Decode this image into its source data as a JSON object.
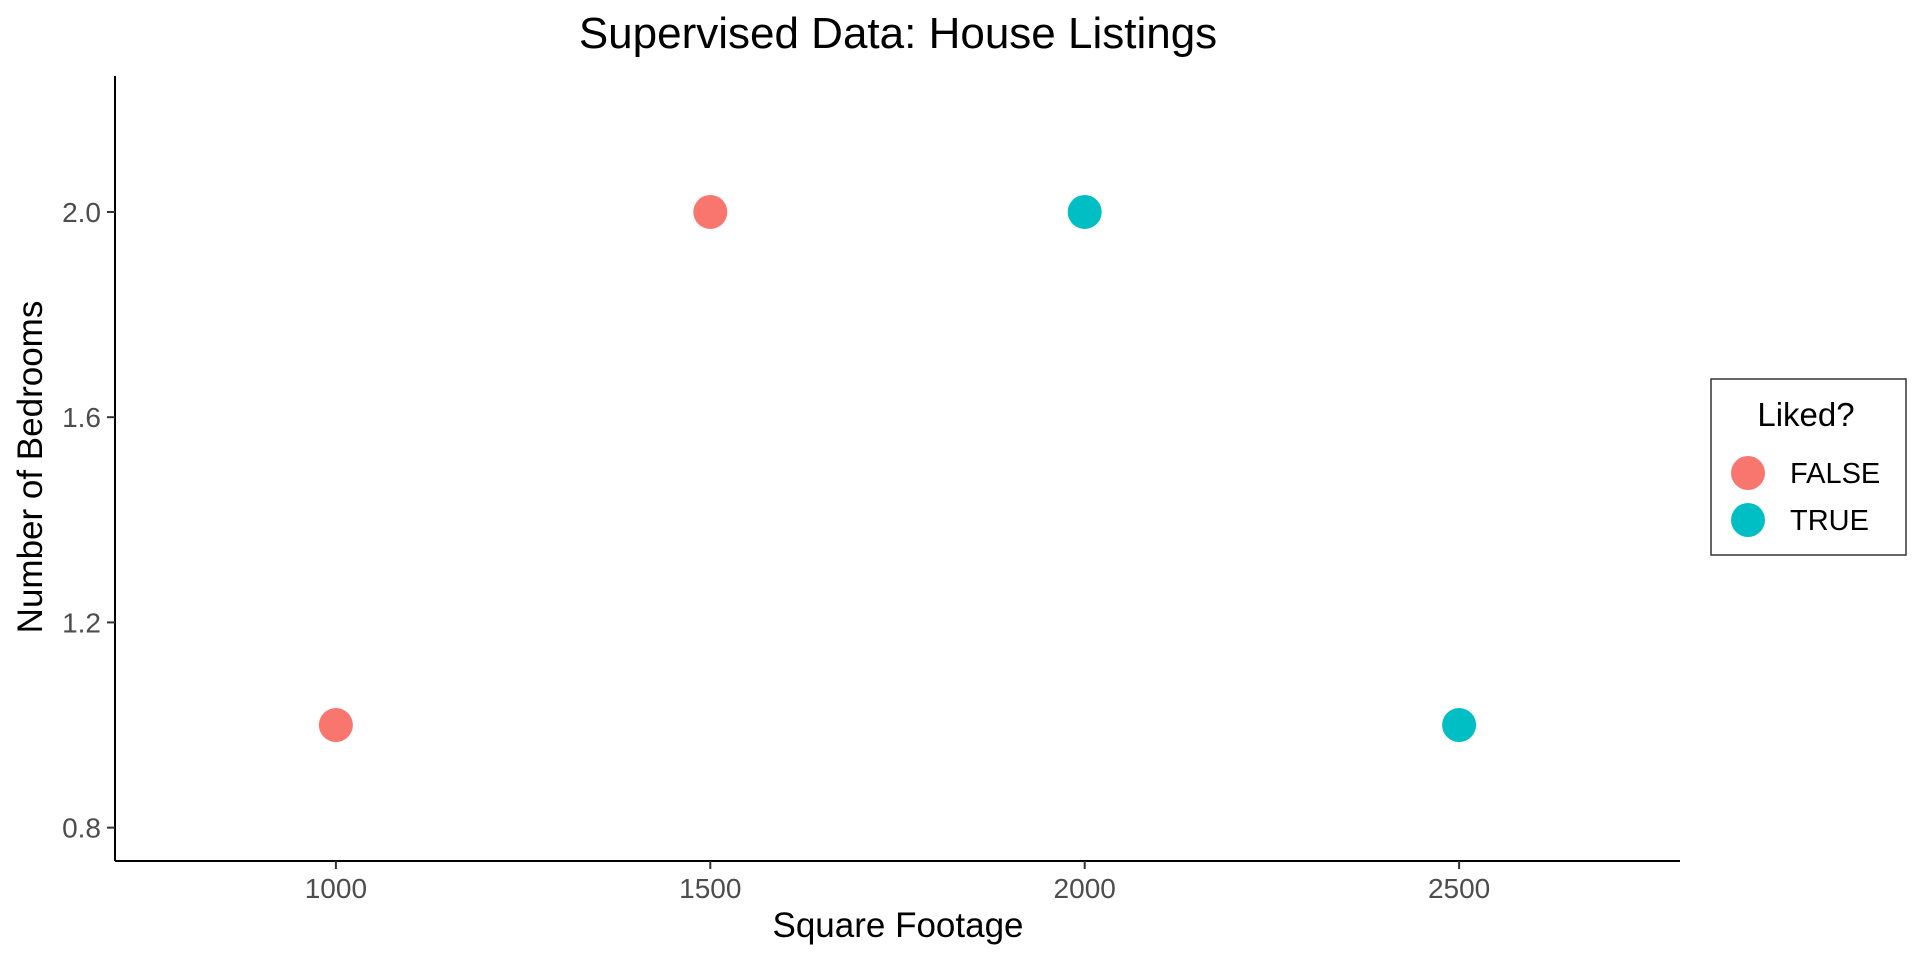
{
  "chart_data": {
    "type": "scatter",
    "title": "Supervised Data: House Listings",
    "xlabel": "Square Footage",
    "ylabel": "Number of Bedrooms",
    "xlim": [
      705,
      2795
    ],
    "ylim": [
      0.735,
      2.265
    ],
    "x_ticks": [
      1000,
      1500,
      2000,
      2500
    ],
    "x_tick_labels": [
      "1000",
      "1500",
      "2000",
      "2500"
    ],
    "y_ticks": [
      0.8,
      1.2,
      1.6,
      2.0
    ],
    "y_tick_labels": [
      "0.8",
      "1.2",
      "1.6",
      "2.0"
    ],
    "grid": false,
    "legend": {
      "title": "Liked?",
      "placement": "right",
      "entries": [
        {
          "label": "FALSE",
          "color": "#F8766D"
        },
        {
          "label": "TRUE",
          "color": "#00BFC4"
        }
      ]
    },
    "series": [
      {
        "name": "FALSE",
        "color": "#F8766D",
        "points": [
          {
            "x": 1000,
            "y": 1
          },
          {
            "x": 1500,
            "y": 2
          }
        ]
      },
      {
        "name": "TRUE",
        "color": "#00BFC4",
        "points": [
          {
            "x": 2000,
            "y": 2
          },
          {
            "x": 2500,
            "y": 1
          }
        ]
      }
    ]
  }
}
